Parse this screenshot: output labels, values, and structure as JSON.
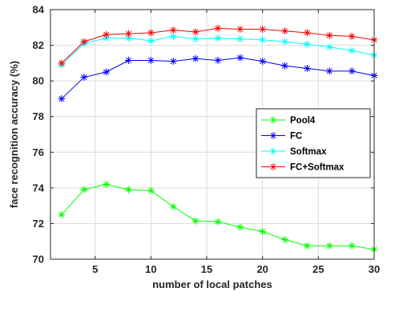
{
  "chart_data": {
    "type": "line",
    "title": "",
    "xlabel": "number of  local patches",
    "ylabel": "face recognition accuracy (%)",
    "xlim": [
      1,
      30
    ],
    "ylim": [
      70,
      84
    ],
    "xticks": [
      5,
      10,
      15,
      20,
      25,
      30
    ],
    "yticks": [
      70,
      72,
      74,
      76,
      78,
      80,
      82,
      84
    ],
    "grid": true,
    "legend_position": "right",
    "marker": "asterisk",
    "x": [
      2,
      4,
      6,
      8,
      10,
      12,
      14,
      16,
      18,
      20,
      22,
      24,
      26,
      28,
      30
    ],
    "series": [
      {
        "name": "Pool4",
        "color": "#00ff00",
        "values": [
          72.5,
          73.9,
          74.2,
          73.9,
          73.85,
          72.95,
          72.15,
          72.1,
          71.8,
          71.55,
          71.1,
          70.75,
          70.75,
          70.75,
          70.55
        ]
      },
      {
        "name": "FC",
        "color": "#0000ff",
        "values": [
          79.0,
          80.2,
          80.5,
          81.15,
          81.15,
          81.1,
          81.25,
          81.15,
          81.3,
          81.1,
          80.85,
          80.7,
          80.55,
          80.55,
          80.3
        ]
      },
      {
        "name": "Softmax",
        "color": "#00ffff",
        "values": [
          80.9,
          82.1,
          82.4,
          82.4,
          82.25,
          82.5,
          82.35,
          82.4,
          82.35,
          82.3,
          82.2,
          82.05,
          81.9,
          81.7,
          81.45
        ]
      },
      {
        "name": "FC+Softmax",
        "color": "#ff0000",
        "values": [
          81.0,
          82.2,
          82.6,
          82.65,
          82.7,
          82.85,
          82.75,
          82.95,
          82.9,
          82.9,
          82.8,
          82.7,
          82.55,
          82.5,
          82.3
        ]
      }
    ]
  }
}
